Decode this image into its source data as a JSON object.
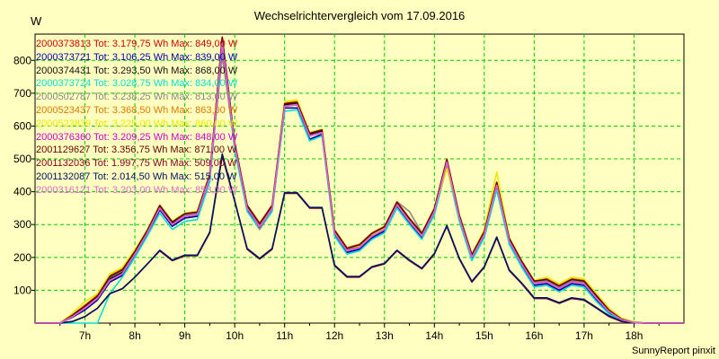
{
  "chart_data": {
    "type": "line",
    "title": "Wechselrichtervergleich vom 17.09.2016",
    "ylabel": "W",
    "footer": "SunnyReport pinxit",
    "x_tick_labels": [
      "7h",
      "8h",
      "9h",
      "10h",
      "11h",
      "12h",
      "13h",
      "14h",
      "15h",
      "16h",
      "17h",
      "18h"
    ],
    "x_tick_hours": [
      7,
      8,
      9,
      10,
      11,
      12,
      13,
      14,
      15,
      16,
      17,
      18
    ],
    "x_range_hours": [
      6.0,
      19.0
    ],
    "y_ticks": [
      100,
      200,
      300,
      400,
      500,
      600,
      700,
      800
    ],
    "ylim": [
      0,
      880
    ],
    "grid": true,
    "legend_position": "top-left",
    "x_hours": [
      6.5,
      6.75,
      7.0,
      7.25,
      7.5,
      7.75,
      8.0,
      8.25,
      8.5,
      8.75,
      9.0,
      9.25,
      9.5,
      9.75,
      10.0,
      10.25,
      10.5,
      10.75,
      11.0,
      11.25,
      11.5,
      11.75,
      12.0,
      12.25,
      12.5,
      12.75,
      13.0,
      13.25,
      13.5,
      13.75,
      14.0,
      14.25,
      14.5,
      14.75,
      15.0,
      15.25,
      15.5,
      15.75,
      16.0,
      16.25,
      16.5,
      16.75,
      17.0,
      17.25,
      17.5,
      17.75,
      18.0,
      18.25,
      18.5,
      18.75
    ],
    "series": [
      {
        "name": "2000373813",
        "legend": "2000373813 Tot: 3.179,75 Wh Max: 849,00 W",
        "color": "#cc0000",
        "values": [
          0,
          20,
          45,
          75,
          130,
          150,
          210,
          275,
          350,
          300,
          325,
          330,
          445,
          849,
          540,
          350,
          295,
          350,
          660,
          665,
          570,
          580,
          275,
          220,
          230,
          265,
          285,
          360,
          310,
          265,
          340,
          490,
          320,
          200,
          270,
          420,
          250,
          180,
          120,
          125,
          105,
          125,
          120,
          75,
          35,
          10,
          2,
          0,
          0,
          0
        ]
      },
      {
        "name": "2000373721",
        "legend": "2000373721 Tot: 3.106,25 Wh Max: 839,00 W",
        "color": "#0000aa",
        "values": [
          0,
          18,
          40,
          70,
          125,
          145,
          205,
          270,
          345,
          295,
          320,
          325,
          440,
          839,
          535,
          345,
          290,
          345,
          655,
          655,
          560,
          575,
          270,
          215,
          225,
          260,
          280,
          355,
          305,
          260,
          335,
          480,
          315,
          195,
          265,
          415,
          245,
          175,
          115,
          120,
          100,
          120,
          115,
          70,
          30,
          10,
          2,
          0,
          0,
          0
        ]
      },
      {
        "name": "2000374431",
        "legend": "2000374431 Tot: 3.293,50 Wh Max: 868,00 W",
        "color": "#111111",
        "values": [
          0,
          22,
          48,
          78,
          135,
          155,
          215,
          280,
          355,
          305,
          330,
          335,
          450,
          868,
          545,
          355,
          300,
          355,
          665,
          670,
          575,
          585,
          280,
          225,
          235,
          270,
          290,
          365,
          315,
          270,
          345,
          495,
          325,
          205,
          275,
          425,
          255,
          185,
          125,
          130,
          110,
          130,
          125,
          80,
          38,
          12,
          2,
          0,
          0,
          0
        ]
      },
      {
        "name": "2000373724",
        "legend": "2000373724 Tot: 3.028,75 Wh Max: 834,00 W",
        "color": "#00dddd",
        "values": [
          0,
          0,
          0,
          0,
          90,
          140,
          200,
          265,
          335,
          285,
          310,
          315,
          430,
          834,
          525,
          340,
          285,
          340,
          645,
          650,
          555,
          570,
          265,
          210,
          220,
          255,
          275,
          350,
          300,
          255,
          330,
          475,
          310,
          190,
          260,
          405,
          240,
          170,
          110,
          115,
          95,
          115,
          110,
          65,
          28,
          8,
          1,
          0,
          0,
          0
        ]
      },
      {
        "name": "2000502787",
        "legend": "2000502787 Tot: 3.238,25 Wh Max: 813,00 W",
        "color": "#888888",
        "values": [
          0,
          25,
          50,
          80,
          140,
          160,
          215,
          275,
          350,
          300,
          330,
          335,
          450,
          813,
          545,
          360,
          285,
          350,
          660,
          665,
          570,
          580,
          280,
          225,
          235,
          270,
          285,
          370,
          340,
          275,
          345,
          480,
          325,
          205,
          270,
          420,
          255,
          185,
          125,
          130,
          110,
          130,
          125,
          80,
          38,
          12,
          2,
          0,
          0,
          0
        ]
      },
      {
        "name": "2000523437",
        "legend": "2000523437 Tot: 3.368,50 Wh Max: 863,00 W",
        "color": "#dd7700",
        "values": [
          0,
          25,
          55,
          85,
          145,
          165,
          220,
          285,
          360,
          310,
          335,
          340,
          455,
          863,
          550,
          360,
          305,
          360,
          670,
          675,
          580,
          590,
          285,
          230,
          240,
          275,
          295,
          370,
          320,
          275,
          350,
          500,
          330,
          210,
          280,
          430,
          260,
          190,
          130,
          135,
          115,
          135,
          130,
          85,
          40,
          13,
          3,
          0,
          0,
          0
        ]
      },
      {
        "name": "2000523839",
        "legend": "2000523839 Tot: 3.225,00 Wh Max: 860,00 W",
        "color": "#e8e800",
        "values": [
          0,
          30,
          65,
          90,
          150,
          170,
          225,
          285,
          360,
          310,
          335,
          340,
          455,
          860,
          545,
          355,
          300,
          355,
          675,
          680,
          580,
          590,
          285,
          230,
          235,
          270,
          290,
          365,
          315,
          270,
          345,
          470,
          330,
          210,
          285,
          460,
          260,
          190,
          130,
          140,
          120,
          140,
          135,
          90,
          45,
          15,
          3,
          0,
          0,
          0
        ]
      },
      {
        "name": "2000376360",
        "legend": "2000376360 Tot: 3.209,25 Wh Max: 848,00 W",
        "color": "#cc00cc",
        "values": [
          0,
          20,
          45,
          75,
          130,
          150,
          210,
          275,
          350,
          300,
          325,
          330,
          445,
          848,
          540,
          350,
          295,
          350,
          660,
          665,
          570,
          580,
          275,
          220,
          230,
          265,
          285,
          360,
          310,
          265,
          340,
          490,
          320,
          200,
          270,
          420,
          250,
          180,
          120,
          125,
          105,
          125,
          120,
          75,
          35,
          10,
          2,
          0,
          0,
          0
        ]
      },
      {
        "name": "2001129627",
        "legend": "2001129627 Tot: 3.356,75 Wh Max: 871,00 W",
        "color": "#660000",
        "values": [
          0,
          24,
          52,
          82,
          142,
          162,
          218,
          282,
          358,
          308,
          333,
          338,
          452,
          871,
          548,
          358,
          302,
          358,
          668,
          672,
          578,
          588,
          283,
          228,
          238,
          273,
          293,
          368,
          318,
          273,
          348,
          498,
          328,
          208,
          278,
          428,
          258,
          188,
          128,
          133,
          113,
          133,
          128,
          83,
          39,
          12,
          2,
          0,
          0,
          0
        ]
      },
      {
        "name": "2001132036",
        "legend": "2001132036 Tot: 1.997,75 Wh Max: 509,00 W",
        "color": "#880022",
        "values": [
          0,
          5,
          20,
          45,
          90,
          105,
          140,
          180,
          220,
          190,
          205,
          205,
          275,
          509,
          370,
          225,
          195,
          225,
          395,
          395,
          350,
          350,
          175,
          140,
          140,
          170,
          180,
          220,
          190,
          165,
          210,
          295,
          195,
          125,
          170,
          260,
          160,
          120,
          75,
          75,
          60,
          75,
          70,
          45,
          20,
          5,
          1,
          0,
          0,
          0
        ]
      },
      {
        "name": "2001132087",
        "legend": "2001132087 Tot: 2.014,50 Wh Max: 515,00 W",
        "color": "#001166",
        "values": [
          0,
          5,
          20,
          45,
          90,
          105,
          140,
          180,
          222,
          192,
          207,
          207,
          277,
          515,
          372,
          227,
          197,
          227,
          397,
          397,
          352,
          352,
          177,
          142,
          142,
          172,
          182,
          222,
          192,
          167,
          212,
          297,
          197,
          127,
          172,
          262,
          162,
          122,
          77,
          77,
          62,
          77,
          72,
          47,
          22,
          6,
          1,
          0,
          0,
          0
        ]
      },
      {
        "name": "2000316121",
        "legend": "2000316121 Tot: 3.203,00 Wh Max: 853,00 W",
        "color": "#dd66cc",
        "values": [
          0,
          20,
          45,
          75,
          130,
          150,
          210,
          275,
          350,
          300,
          325,
          330,
          445,
          853,
          540,
          350,
          295,
          350,
          660,
          665,
          570,
          580,
          275,
          220,
          230,
          265,
          285,
          360,
          310,
          265,
          340,
          490,
          320,
          200,
          270,
          420,
          250,
          180,
          120,
          125,
          105,
          125,
          120,
          75,
          35,
          10,
          2,
          0,
          0,
          0
        ]
      }
    ]
  }
}
